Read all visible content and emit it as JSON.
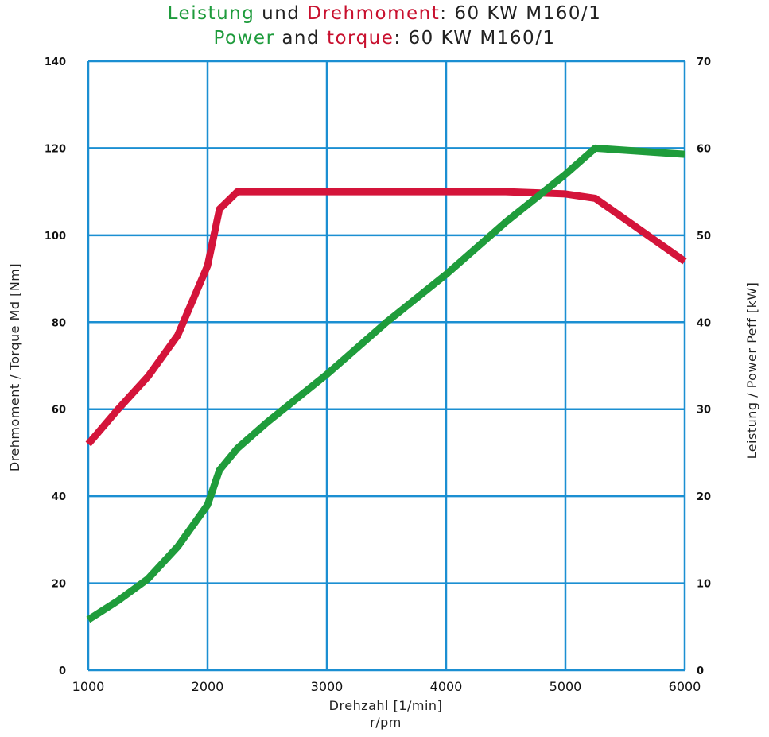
{
  "title": {
    "line1": [
      {
        "text": "Leistung",
        "color": "#1e9b3c"
      },
      {
        "text": " und ",
        "color": "#222222"
      },
      {
        "text": "Drehmoment",
        "color": "#c8102e"
      },
      {
        "text": ": 60 KW M160/1",
        "color": "#222222"
      }
    ],
    "line2": [
      {
        "text": "Power",
        "color": "#1e9b3c"
      },
      {
        "text": " and ",
        "color": "#222222"
      },
      {
        "text": "torque",
        "color": "#c8102e"
      },
      {
        "text": ": 60 KW M160/1",
        "color": "#222222"
      }
    ]
  },
  "chart_data": {
    "type": "line",
    "xlabel": "Drehzahl [1/min]",
    "xlabel2": "r/pm",
    "ylabel_left": "Drehmoment / Torque Md [Nm]",
    "ylabel_right": "Leistung / Power Peff [kW]",
    "xlim": [
      1000,
      6000
    ],
    "ylim_left": [
      0,
      140
    ],
    "ylim_right": [
      0,
      70
    ],
    "x_ticks": [
      "1000",
      "2000",
      "3000",
      "4000",
      "5000",
      "6000"
    ],
    "y_ticks_left": [
      "0",
      "20",
      "40",
      "60",
      "80",
      "100",
      "120",
      "140"
    ],
    "y_ticks_right": [
      "0",
      "10",
      "20",
      "30",
      "40",
      "50",
      "60",
      "70"
    ],
    "grid": true,
    "grid_color": "#1b8fd2",
    "series": [
      {
        "name": "Drehmoment",
        "axis": "left",
        "color": "#d4143a",
        "points": [
          [
            1000,
            52
          ],
          [
            1250,
            60
          ],
          [
            1500,
            67.5
          ],
          [
            1750,
            77
          ],
          [
            2000,
            93
          ],
          [
            2100,
            106
          ],
          [
            2250,
            110
          ],
          [
            3000,
            110
          ],
          [
            4000,
            110
          ],
          [
            4500,
            110
          ],
          [
            5000,
            109.5
          ],
          [
            5250,
            108.5
          ],
          [
            6000,
            94
          ]
        ]
      },
      {
        "name": "Leistung",
        "axis": "right",
        "color": "#1f9c3b",
        "points": [
          [
            1000,
            5.8
          ],
          [
            1250,
            8
          ],
          [
            1500,
            10.5
          ],
          [
            1750,
            14.2
          ],
          [
            2000,
            19
          ],
          [
            2100,
            23
          ],
          [
            2250,
            25.5
          ],
          [
            2500,
            28.5
          ],
          [
            3000,
            34
          ],
          [
            3500,
            40
          ],
          [
            4000,
            45.5
          ],
          [
            4500,
            51.5
          ],
          [
            5000,
            57
          ],
          [
            5250,
            60
          ],
          [
            6000,
            59.3
          ]
        ]
      }
    ]
  }
}
